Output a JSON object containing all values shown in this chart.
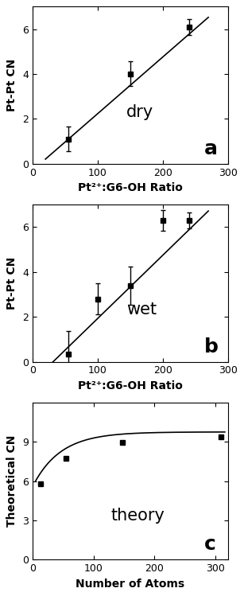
{
  "panel_a": {
    "x": [
      55,
      150,
      240
    ],
    "y": [
      1.1,
      4.0,
      6.1
    ],
    "yerr": [
      0.55,
      0.55,
      0.35
    ],
    "fit_x": [
      20,
      270
    ],
    "fit_slope": 0.02527,
    "fit_intercept": -0.3,
    "xlabel": "Pt²⁺:G6-OH Ratio",
    "ylabel": "Pt-Pt CN",
    "label": "dry",
    "panel_label": "a",
    "xlim": [
      0,
      300
    ],
    "ylim": [
      0,
      7
    ],
    "xticks": [
      0,
      100,
      200,
      300
    ],
    "yticks": [
      0,
      2,
      4,
      6
    ]
  },
  "panel_b": {
    "x": [
      55,
      100,
      150,
      200,
      240
    ],
    "y": [
      0.35,
      2.8,
      3.4,
      6.3,
      6.3
    ],
    "yerr": [
      1.0,
      0.7,
      0.85,
      0.45,
      0.35
    ],
    "fit_x": [
      20,
      270
    ],
    "fit_slope": 0.0282,
    "fit_intercept": -0.9,
    "xlabel": "Pt²⁺:G6-OH Ratio",
    "ylabel": "Pt-Pt CN",
    "label": "wet",
    "panel_label": "b",
    "xlim": [
      0,
      300
    ],
    "ylim": [
      0,
      7
    ],
    "xticks": [
      0,
      100,
      200,
      300
    ],
    "yticks": [
      0,
      2,
      4,
      6
    ]
  },
  "panel_c": {
    "x": [
      13,
      55,
      147,
      309
    ],
    "y": [
      5.77,
      7.73,
      8.97,
      9.35
    ],
    "curve_x_start": 5,
    "curve_x_end": 315,
    "curve_a": 9.75,
    "curve_b": -4.2,
    "curve_c": 0.022,
    "xlabel": "Number of Atoms",
    "ylabel": "Theoretical CN",
    "label": "theory",
    "panel_label": "c",
    "xlim": [
      0,
      320
    ],
    "ylim": [
      0,
      12
    ],
    "xticks": [
      0,
      100,
      200,
      300
    ],
    "yticks": [
      0,
      3,
      6,
      9
    ]
  },
  "marker": "s",
  "markersize": 4,
  "linewidth": 1.2,
  "elinewidth": 1.0,
  "capsize": 2,
  "background_color": "#ffffff",
  "text_color": "#000000"
}
